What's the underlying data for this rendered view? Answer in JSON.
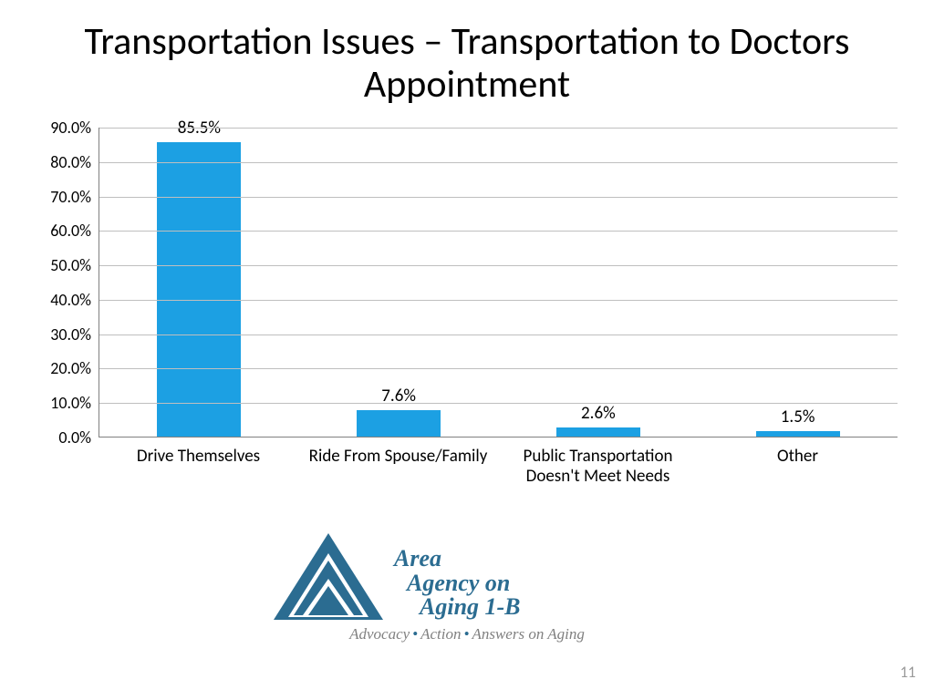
{
  "title": "Transportation Issues – Transportation to Doctors Appointment",
  "chart": {
    "type": "bar",
    "categories": [
      "Drive Themselves",
      "Ride From Spouse/Family",
      "Public Transportation Doesn't Meet Needs",
      "Other"
    ],
    "values": [
      85.5,
      7.6,
      2.6,
      1.5
    ],
    "value_labels": [
      "85.5%",
      "7.6%",
      "2.6%",
      "1.5%"
    ],
    "bar_color": "#1ca0e3",
    "ylim": [
      0,
      90
    ],
    "ytick_step": 10,
    "ytick_labels": [
      "0.0%",
      "10.0%",
      "20.0%",
      "30.0%",
      "40.0%",
      "50.0%",
      "60.0%",
      "70.0%",
      "80.0%",
      "90.0%"
    ],
    "grid_color": "#bfbfbf",
    "axis_color": "#808080",
    "background_color": "#ffffff",
    "bar_width_ratio": 0.42,
    "label_fontsize": 19,
    "ytick_fontsize": 18,
    "value_label_fontsize": 19
  },
  "logo": {
    "line1": "Area",
    "line2": "Agency on",
    "line3": "Aging 1-B",
    "tagline_parts": [
      "Advocacy",
      "Action",
      "Answers on Aging"
    ],
    "triangle_color": "#2b6c91",
    "text_color": "#2b6c91",
    "tagline_color": "#808080"
  },
  "page_number": "11"
}
